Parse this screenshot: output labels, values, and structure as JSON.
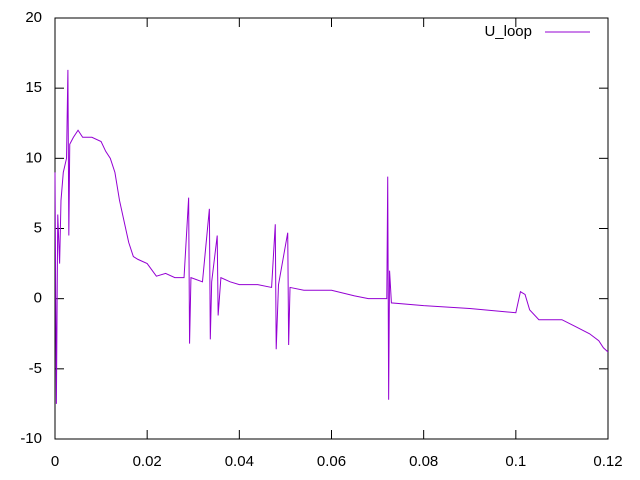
{
  "chart_data": {
    "type": "line",
    "x": [
      0,
      0.0003,
      0.0006,
      0.001,
      0.0013,
      0.0018,
      0.0025,
      0.0028,
      0.003,
      0.0032,
      0.004,
      0.005,
      0.006,
      0.008,
      0.01,
      0.011,
      0.012,
      0.013,
      0.014,
      0.015,
      0.016,
      0.017,
      0.018,
      0.02,
      0.022,
      0.024,
      0.026,
      0.028,
      0.029,
      0.0292,
      0.0295,
      0.032,
      0.0335,
      0.0337,
      0.034,
      0.0352,
      0.0354,
      0.036,
      0.038,
      0.04,
      0.044,
      0.047,
      0.0478,
      0.048,
      0.0485,
      0.0505,
      0.0507,
      0.051,
      0.054,
      0.06,
      0.065,
      0.068,
      0.072,
      0.0722,
      0.0724,
      0.0726,
      0.073,
      0.08,
      0.09,
      0.1,
      0.101,
      0.102,
      0.103,
      0.105,
      0.11,
      0.113,
      0.116,
      0.118,
      0.119,
      0.12
    ],
    "series": [
      {
        "name": "U_loop",
        "color": "#9400d3",
        "values": [
          9,
          -7.5,
          6,
          2.5,
          7,
          9,
          10,
          16.3,
          4.5,
          11,
          11.5,
          12,
          11.5,
          11.5,
          11.2,
          10.5,
          10,
          9,
          7,
          5.5,
          4,
          3,
          2.8,
          2.5,
          1.6,
          1.8,
          1.5,
          1.5,
          7.2,
          -3.2,
          1.5,
          1.2,
          6.4,
          -2.9,
          1.2,
          4.5,
          -1.2,
          1.5,
          1.2,
          1.0,
          1.0,
          0.8,
          5.3,
          -3.6,
          1,
          4.7,
          -3.3,
          0.8,
          0.6,
          0.6,
          0.2,
          0,
          0,
          8.7,
          -7.2,
          2,
          -0.3,
          -0.5,
          -0.7,
          -1,
          0.5,
          0.3,
          -0.8,
          -1.5,
          -1.5,
          -2,
          -2.5,
          -3,
          -3.5,
          -3.8
        ]
      }
    ],
    "xlim": [
      0,
      0.12
    ],
    "xticks": [
      0,
      0.02,
      0.04,
      0.06,
      0.08,
      0.1,
      0.12
    ],
    "ylim": [
      -10,
      20
    ],
    "yticks": [
      -10,
      -5,
      0,
      5,
      10,
      15,
      20
    ],
    "legend": "top-right"
  }
}
